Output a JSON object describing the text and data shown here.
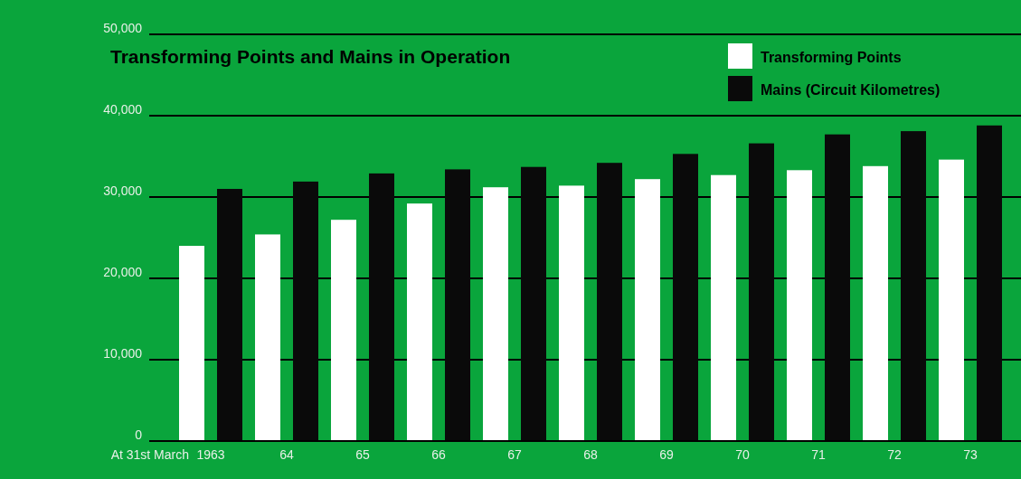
{
  "chart_data": {
    "type": "bar",
    "title": "Transforming Points and Mains in Operation",
    "xlabel": "At 31st March",
    "categories": [
      "1963",
      "64",
      "65",
      "66",
      "67",
      "68",
      "69",
      "70",
      "71",
      "72",
      "73"
    ],
    "series": [
      {
        "name": "Transforming Points",
        "color": "#ffffff",
        "values": [
          24000,
          25400,
          27200,
          29200,
          31200,
          31400,
          32200,
          32700,
          33300,
          33800,
          34600
        ]
      },
      {
        "name": "Mains (Circuit Kilometres)",
        "color": "#0a0a0a",
        "values": [
          31000,
          31900,
          32900,
          33400,
          33700,
          34200,
          35300,
          36600,
          37700,
          38100,
          38800
        ]
      }
    ],
    "ylim": [
      0,
      50000
    ],
    "yticks": [
      {
        "value": 0,
        "label": "0"
      },
      {
        "value": 10000,
        "label": "10,000"
      },
      {
        "value": 20000,
        "label": "20,000"
      },
      {
        "value": 30000,
        "label": "30,000"
      },
      {
        "value": 40000,
        "label": "40,000"
      },
      {
        "value": 50000,
        "label": "50,000"
      }
    ],
    "grid": "y",
    "legend": "top right"
  }
}
